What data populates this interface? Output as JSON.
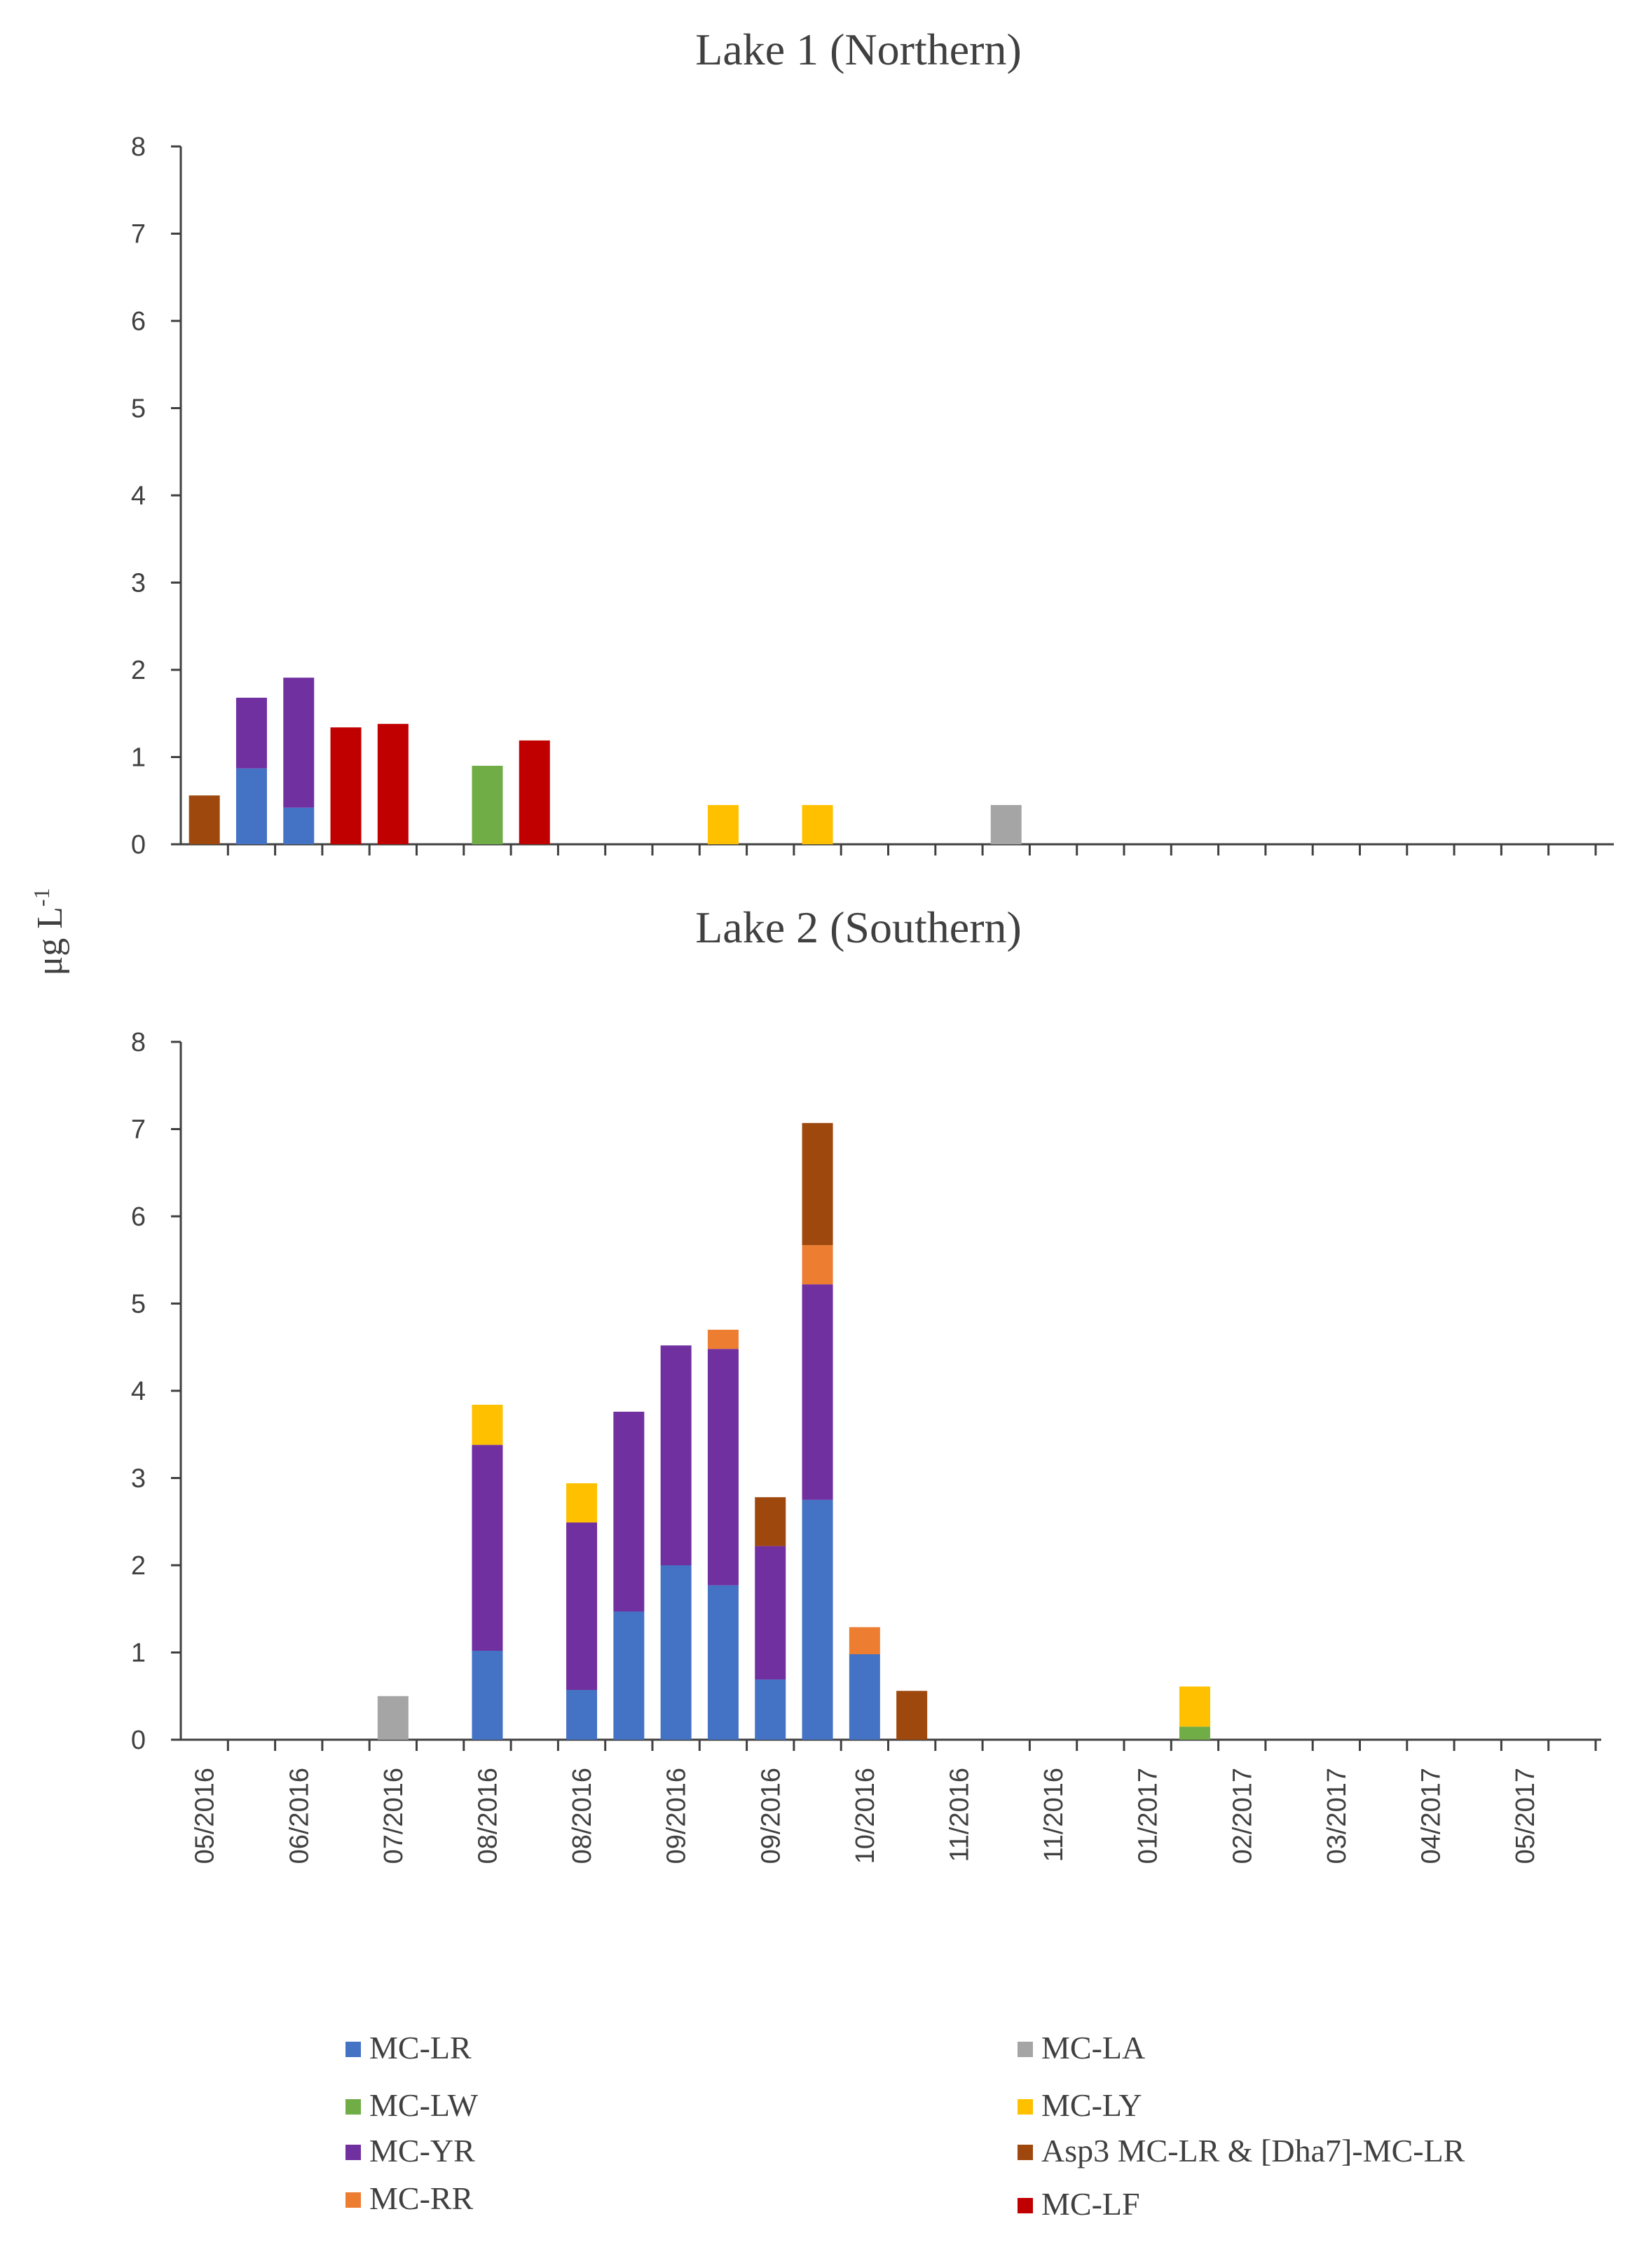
{
  "chart_data": [
    {
      "type": "bar",
      "stacked": true,
      "title": "Lake 1 (Northern)",
      "ylabel": "μg L-1",
      "ylim": [
        0,
        8
      ],
      "yticks": [
        "0",
        "1",
        "2",
        "3",
        "4",
        "5",
        "6",
        "7",
        "8"
      ],
      "xlabels": [],
      "bars": [
        {
          "slot": 0,
          "MC-LR": 0,
          "MC-LW": 0,
          "MC-YR": 0,
          "MC-RR": 0,
          "MC-LA": 0,
          "MC-LY": 0,
          "Asp3 MC-LR & [Dha7]-MC-LR": 0.56,
          "MC-LF": 0
        },
        {
          "slot": 1,
          "MC-LR": 0.87,
          "MC-LW": 0,
          "MC-YR": 0.81,
          "MC-RR": 0,
          "MC-LA": 0,
          "MC-LY": 0,
          "Asp3 MC-LR & [Dha7]-MC-LR": 0,
          "MC-LF": 0
        },
        {
          "slot": 2,
          "MC-LR": 0.42,
          "MC-LW": 0,
          "MC-YR": 1.49,
          "MC-RR": 0,
          "MC-LA": 0,
          "MC-LY": 0,
          "Asp3 MC-LR & [Dha7]-MC-LR": 0,
          "MC-LF": 0
        },
        {
          "slot": 3,
          "MC-LR": 0,
          "MC-LW": 0,
          "MC-YR": 0,
          "MC-RR": 0,
          "MC-LA": 0,
          "MC-LY": 0,
          "Asp3 MC-LR & [Dha7]-MC-LR": 0,
          "MC-LF": 1.34
        },
        {
          "slot": 4,
          "MC-LR": 0,
          "MC-LW": 0,
          "MC-YR": 0,
          "MC-RR": 0,
          "MC-LA": 0,
          "MC-LY": 0,
          "Asp3 MC-LR & [Dha7]-MC-LR": 0,
          "MC-LF": 1.38
        },
        {
          "slot": 6,
          "MC-LR": 0,
          "MC-LW": 0.9,
          "MC-YR": 0,
          "MC-RR": 0,
          "MC-LA": 0,
          "MC-LY": 0,
          "Asp3 MC-LR & [Dha7]-MC-LR": 0,
          "MC-LF": 0
        },
        {
          "slot": 7,
          "MC-LR": 0,
          "MC-LW": 0,
          "MC-YR": 0,
          "MC-RR": 0,
          "MC-LA": 0,
          "MC-LY": 0,
          "Asp3 MC-LR & [Dha7]-MC-LR": 0,
          "MC-LF": 1.19
        },
        {
          "slot": 11,
          "MC-LR": 0,
          "MC-LW": 0,
          "MC-YR": 0,
          "MC-RR": 0,
          "MC-LA": 0,
          "MC-LY": 0.45,
          "Asp3 MC-LR & [Dha7]-MC-LR": 0,
          "MC-LF": 0
        },
        {
          "slot": 13,
          "MC-LR": 0,
          "MC-LW": 0,
          "MC-YR": 0,
          "MC-RR": 0,
          "MC-LA": 0,
          "MC-LY": 0.45,
          "Asp3 MC-LR & [Dha7]-MC-LR": 0,
          "MC-LF": 0
        },
        {
          "slot": 17,
          "MC-LR": 0,
          "MC-LW": 0,
          "MC-YR": 0,
          "MC-RR": 0,
          "MC-LA": 0.45,
          "MC-LY": 0,
          "Asp3 MC-LR & [Dha7]-MC-LR": 0,
          "MC-LF": 0
        }
      ]
    },
    {
      "type": "bar",
      "stacked": true,
      "title": "Lake 2 (Southern)",
      "ylabel": "μg L-1",
      "ylim": [
        0,
        8
      ],
      "yticks": [
        "0",
        "1",
        "2",
        "3",
        "4",
        "5",
        "6",
        "7",
        "8"
      ],
      "xlabels": [
        "05/2016",
        "06/2016",
        "07/2016",
        "08/2016",
        "08/2016",
        "09/2016",
        "09/2016",
        "10/2016",
        "11/2016",
        "11/2016",
        "01/2017",
        "02/2017",
        "03/2017",
        "04/2017",
        "05/2017"
      ],
      "bars": [
        {
          "slot": 4,
          "MC-LR": 0,
          "MC-LW": 0,
          "MC-YR": 0,
          "MC-RR": 0,
          "MC-LA": 0.5,
          "MC-LY": 0,
          "Asp3 MC-LR & [Dha7]-MC-LR": 0,
          "MC-LF": 0
        },
        {
          "slot": 6,
          "MC-LR": 1.02,
          "MC-LW": 0,
          "MC-YR": 2.36,
          "MC-RR": 0,
          "MC-LA": 0,
          "MC-LY": 0.46,
          "Asp3 MC-LR & [Dha7]-MC-LR": 0,
          "MC-LF": 0
        },
        {
          "slot": 8,
          "MC-LR": 0.57,
          "MC-LW": 0,
          "MC-YR": 1.92,
          "MC-RR": 0,
          "MC-LA": 0,
          "MC-LY": 0.45,
          "Asp3 MC-LR & [Dha7]-MC-LR": 0,
          "MC-LF": 0
        },
        {
          "slot": 9,
          "MC-LR": 1.47,
          "MC-LW": 0,
          "MC-YR": 2.29,
          "MC-RR": 0,
          "MC-LA": 0,
          "MC-LY": 0,
          "Asp3 MC-LR & [Dha7]-MC-LR": 0,
          "MC-LF": 0
        },
        {
          "slot": 10,
          "MC-LR": 2.0,
          "MC-LW": 0,
          "MC-YR": 2.52,
          "MC-RR": 0,
          "MC-LA": 0,
          "MC-LY": 0,
          "Asp3 MC-LR & [Dha7]-MC-LR": 0,
          "MC-LF": 0
        },
        {
          "slot": 11,
          "MC-LR": 1.77,
          "MC-LW": 0,
          "MC-YR": 2.71,
          "MC-RR": 0.22,
          "MC-LA": 0,
          "MC-LY": 0,
          "Asp3 MC-LR & [Dha7]-MC-LR": 0,
          "MC-LF": 0
        },
        {
          "slot": 12,
          "MC-LR": 0.69,
          "MC-LW": 0,
          "MC-YR": 1.53,
          "MC-RR": 0,
          "MC-LA": 0,
          "MC-LY": 0,
          "Asp3 MC-LR & [Dha7]-MC-LR": 0.56,
          "MC-LF": 0
        },
        {
          "slot": 13,
          "MC-LR": 2.75,
          "MC-LW": 0,
          "MC-YR": 2.47,
          "MC-RR": 0.45,
          "MC-LA": 0,
          "MC-LY": 0,
          "Asp3 MC-LR & [Dha7]-MC-LR": 1.4,
          "MC-LF": 0
        },
        {
          "slot": 14,
          "MC-LR": 0.98,
          "MC-LW": 0,
          "MC-YR": 0,
          "MC-RR": 0.31,
          "MC-LA": 0,
          "MC-LY": 0,
          "Asp3 MC-LR & [Dha7]-MC-LR": 0,
          "MC-LF": 0
        },
        {
          "slot": 15,
          "MC-LR": 0,
          "MC-LW": 0,
          "MC-YR": 0,
          "MC-RR": 0,
          "MC-LA": 0,
          "MC-LY": 0,
          "Asp3 MC-LR & [Dha7]-MC-LR": 0.56,
          "MC-LF": 0
        },
        {
          "slot": 21,
          "MC-LR": 0,
          "MC-LW": 0.15,
          "MC-YR": 0,
          "MC-RR": 0,
          "MC-LA": 0,
          "MC-LY": 0.46,
          "Asp3 MC-LR & [Dha7]-MC-LR": 0,
          "MC-LF": 0
        }
      ]
    }
  ],
  "series": [
    {
      "name": "MC-LR",
      "color": "#4472c4"
    },
    {
      "name": "MC-LW",
      "color": "#70ad47"
    },
    {
      "name": "MC-YR",
      "color": "#7030a0"
    },
    {
      "name": "MC-RR",
      "color": "#ed7d31"
    },
    {
      "name": "MC-LA",
      "color": "#a5a5a5"
    },
    {
      "name": "MC-LY",
      "color": "#ffc000"
    },
    {
      "name": "Asp3 MC-LR & [Dha7]-MC-LR",
      "color": "#9e480e"
    },
    {
      "name": "MC-LF",
      "color": "#c00000"
    }
  ],
  "ylabel": {
    "main": "μg L",
    "sup": "-1"
  }
}
